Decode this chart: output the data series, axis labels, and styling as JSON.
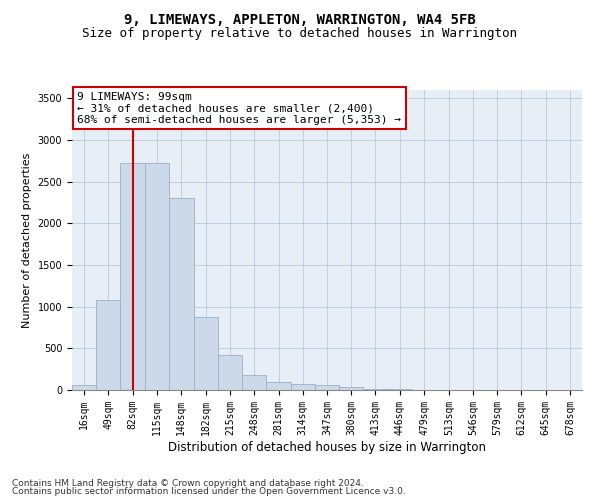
{
  "title1": "9, LIMEWAYS, APPLETON, WARRINGTON, WA4 5FB",
  "title2": "Size of property relative to detached houses in Warrington",
  "xlabel": "Distribution of detached houses by size in Warrington",
  "ylabel": "Number of detached properties",
  "bin_labels": [
    "16sqm",
    "49sqm",
    "82sqm",
    "115sqm",
    "148sqm",
    "182sqm",
    "215sqm",
    "248sqm",
    "281sqm",
    "314sqm",
    "347sqm",
    "380sqm",
    "413sqm",
    "446sqm",
    "479sqm",
    "513sqm",
    "546sqm",
    "579sqm",
    "612sqm",
    "645sqm",
    "678sqm"
  ],
  "bar_values": [
    55,
    1080,
    2720,
    2720,
    2300,
    880,
    420,
    185,
    100,
    75,
    55,
    35,
    18,
    8,
    4,
    4,
    2,
    2,
    1,
    1,
    1
  ],
  "bin_edges": [
    16,
    49,
    82,
    115,
    148,
    182,
    215,
    248,
    281,
    314,
    347,
    380,
    413,
    446,
    479,
    513,
    546,
    579,
    612,
    645,
    678,
    711
  ],
  "property_size": 99,
  "bar_color": "#ccd9e8",
  "bar_edge_color": "#9ab0c8",
  "redline_color": "#cc0000",
  "annotation_text": "9 LIMEWAYS: 99sqm\n← 31% of detached houses are smaller (2,400)\n68% of semi-detached houses are larger (5,353) →",
  "annotation_box_color": "#ffffff",
  "annotation_box_edge_color": "#cc0000",
  "ylim": [
    0,
    3600
  ],
  "yticks": [
    0,
    500,
    1000,
    1500,
    2000,
    2500,
    3000,
    3500
  ],
  "grid_color": "#b8c8dc",
  "plot_bg_color": "#e8eef6",
  "footer1": "Contains HM Land Registry data © Crown copyright and database right 2024.",
  "footer2": "Contains public sector information licensed under the Open Government Licence v3.0.",
  "title1_fontsize": 10,
  "title2_fontsize": 9,
  "xlabel_fontsize": 8.5,
  "ylabel_fontsize": 8,
  "tick_fontsize": 7,
  "annotation_fontsize": 8,
  "footer_fontsize": 6.5
}
